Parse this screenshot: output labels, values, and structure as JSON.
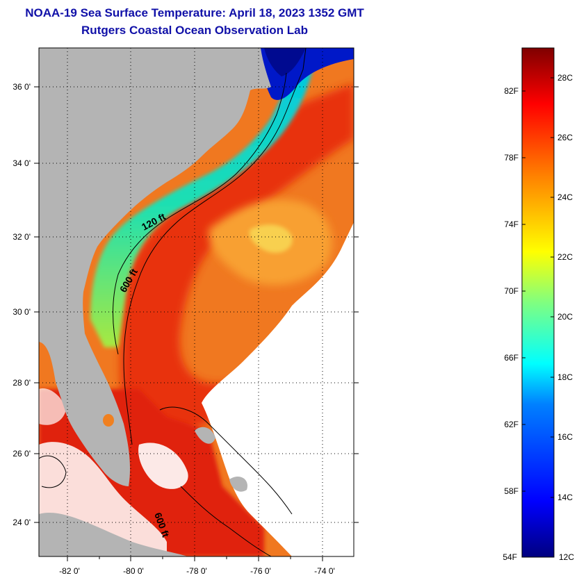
{
  "header": {
    "title": "NOAA-19 Sea Surface Temperature:  April 18, 2023 1352 GMT",
    "subtitle": "Rutgers Coastal Ocean Observation Lab"
  },
  "map": {
    "lon_ticks": [
      "-82 0'",
      "-80 0'",
      "-78 0'",
      "-76 0'",
      "-74 0'"
    ],
    "lat_ticks": [
      "36 0'",
      "34 0'",
      "32 0'",
      "30 0'",
      "28 0'",
      "26 0'",
      "24 0'"
    ],
    "contour_labels": [
      "120 ft",
      "600 ft",
      "600 ft"
    ],
    "colors": {
      "land": "#b4b4b4",
      "cloud": "#ffffff",
      "cold": "#0010c0",
      "warm": "#e02000"
    }
  },
  "colorbar": {
    "fahrenheit_labels": [
      "82F",
      "78F",
      "74F",
      "70F",
      "66F",
      "62F",
      "58F",
      "54F"
    ],
    "celsius_labels": [
      "28C",
      "26C",
      "24C",
      "22C",
      "20C",
      "18C",
      "16C",
      "14C",
      "12C"
    ],
    "range_c": [
      12,
      29.5
    ]
  }
}
